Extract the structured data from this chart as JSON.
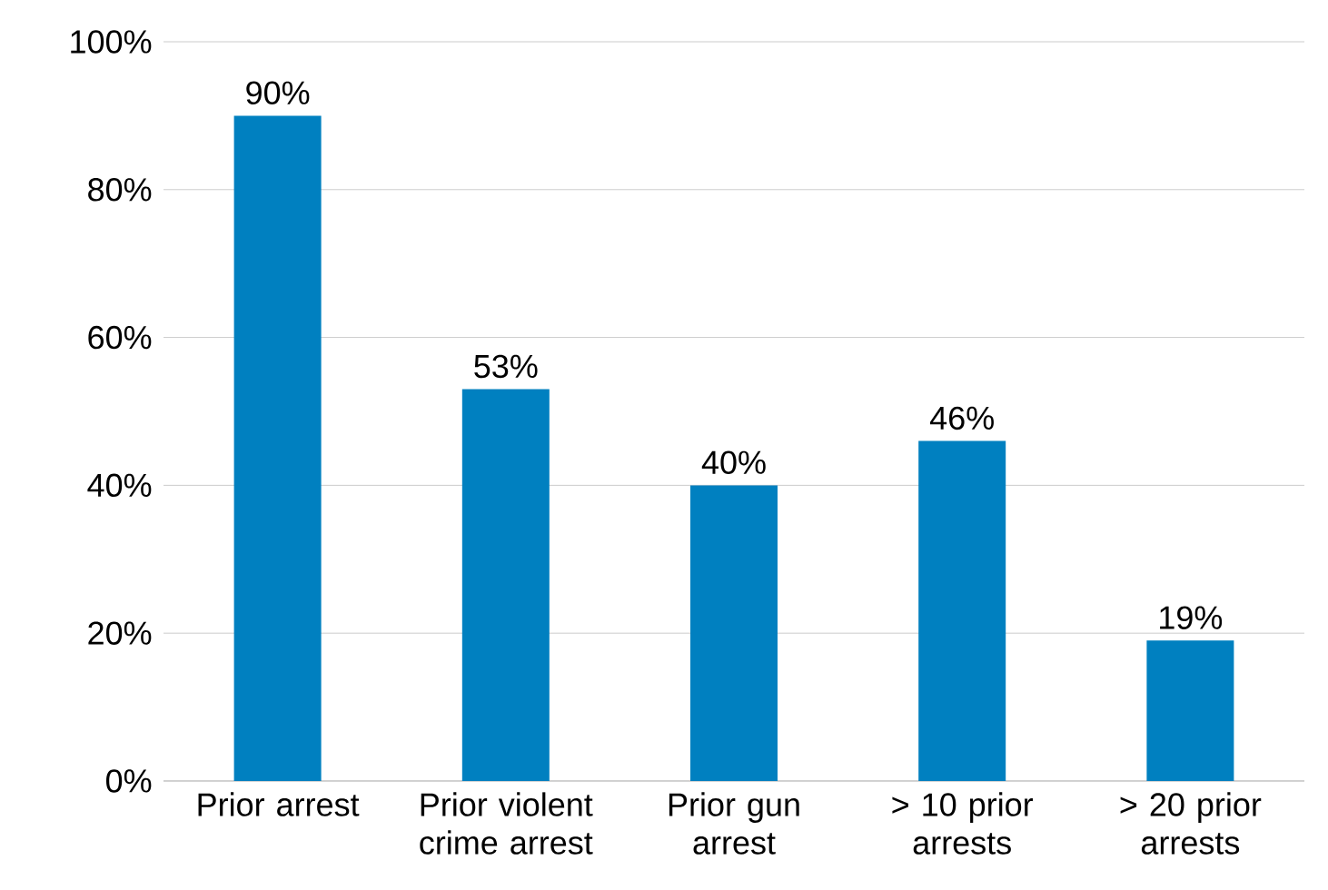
{
  "chart_data": {
    "type": "bar",
    "categories": [
      "Prior arrest",
      "Prior violent crime arrest",
      "Prior gun arrest",
      "> 10 prior arrests",
      "> 20 prior arrests"
    ],
    "values": [
      90,
      53,
      40,
      46,
      19
    ],
    "value_labels": [
      "90%",
      "53%",
      "40%",
      "46%",
      "19%"
    ],
    "color": "#0080c0",
    "ylim": [
      0,
      100
    ],
    "yticks": [
      {
        "value": 0,
        "label": "0%"
      },
      {
        "value": 20,
        "label": "20%"
      },
      {
        "value": 40,
        "label": "40%"
      },
      {
        "value": 60,
        "label": "60%"
      },
      {
        "value": 80,
        "label": "80%"
      },
      {
        "value": 100,
        "label": "100%"
      }
    ],
    "grid": "y"
  }
}
